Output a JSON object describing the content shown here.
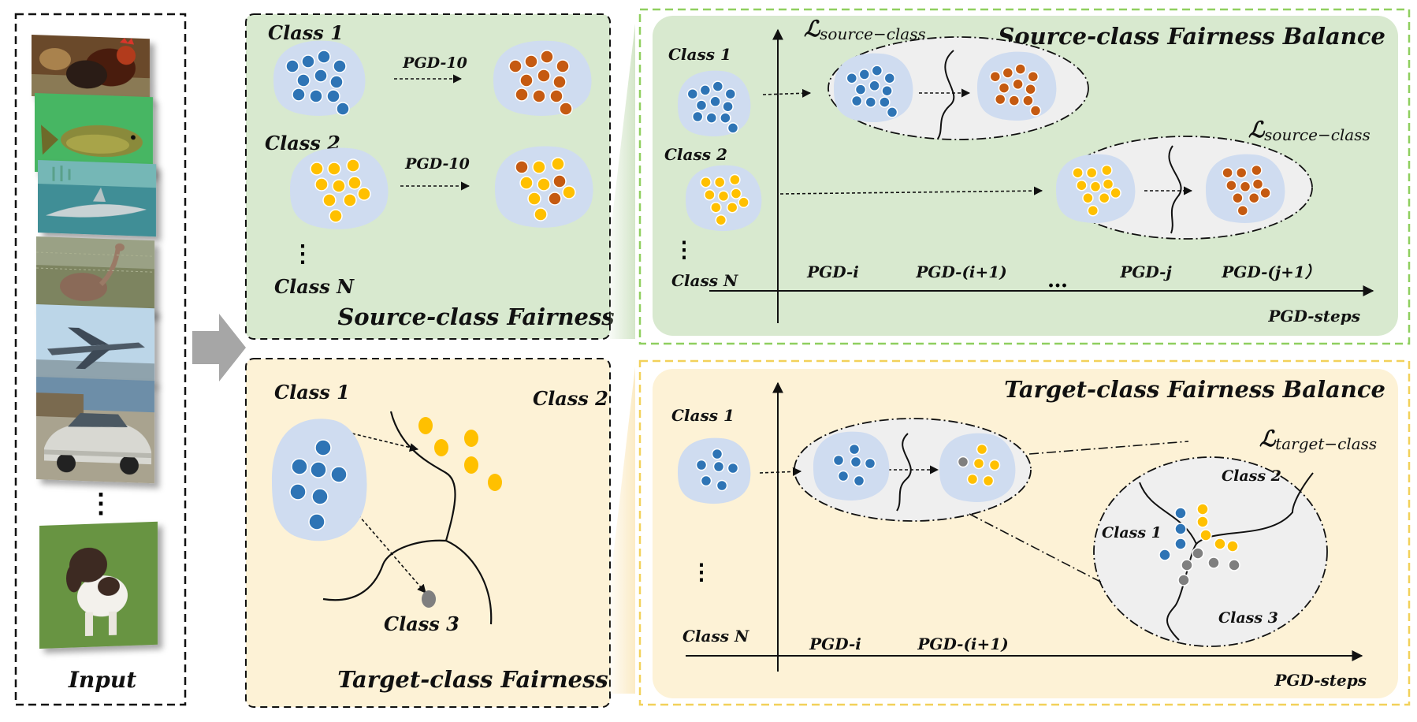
{
  "input": {
    "label": "Input",
    "ellipsis": "⋮",
    "images": [
      "rooster-photo",
      "fish-photo",
      "shark-photo",
      "ostrich-photo",
      "jet-photo",
      "car-photo",
      "dog-photo"
    ]
  },
  "source_fairness": {
    "title": "Source-class Fairness",
    "class1": "Class 1",
    "class2": "Class 2",
    "classN": "Class N",
    "pgd1": "PGD-10",
    "pgd2": "PGD-10",
    "dots": "⋮"
  },
  "target_fairness": {
    "title": "Target-class Fairness",
    "class1": "Class 1",
    "class2": "Class 2",
    "class3": "Class 3"
  },
  "source_balance": {
    "title": "Source-class Fairness Balance",
    "loss_main": "ℒ",
    "loss_sub": "source−class",
    "class1": "Class 1",
    "class2": "Class 2",
    "classN": "Class N",
    "dots": "⋮",
    "ticks": [
      "PGD-i",
      "PGD-(i+1)",
      "…",
      "PGD-j",
      "PGD-(j+1）"
    ],
    "xlabel": "PGD-steps"
  },
  "target_balance": {
    "title": "Target-class Fairness Balance",
    "loss_main": "ℒ",
    "loss_sub": "target−class",
    "class1": "Class 1",
    "classN": "Class N",
    "dots": "⋮",
    "zoom_class1": "Class 1",
    "zoom_class2": "Class 2",
    "zoom_class3": "Class 3",
    "ticks": [
      "PGD-i",
      "PGD-(i+1)"
    ],
    "xlabel": "PGD-steps"
  },
  "colors": {
    "blue": "#2e74b5",
    "orange": "#c55a11",
    "yellow": "#ffc000",
    "gray": "#7f7f7f",
    "blob": "#cfdcf0",
    "green_bg": "#d9ead3",
    "yellow_bg": "#fdf2d4"
  }
}
